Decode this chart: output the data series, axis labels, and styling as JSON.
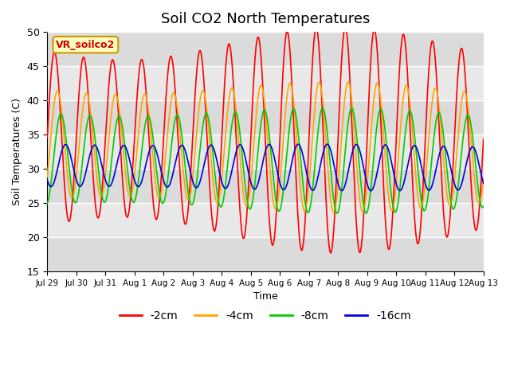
{
  "title": "Soil CO2 North Temperatures",
  "ylabel": "Soil Temperatures (C)",
  "xlabel": "Time",
  "ylim": [
    15,
    50
  ],
  "plot_bg": "#e8e8e8",
  "annotation_label": "VR_soilco2",
  "series": [
    {
      "name": "-2cm",
      "color": "#ff0000",
      "amplitude": 14.0,
      "mean": 34.5,
      "phase": 0.0,
      "amp_mod": 0.18
    },
    {
      "name": "-4cm",
      "color": "#ffa500",
      "amplitude": 8.5,
      "mean": 33.5,
      "phase": 0.1,
      "amp_mod": 0.12
    },
    {
      "name": "-8cm",
      "color": "#00cc00",
      "amplitude": 7.0,
      "mean": 31.5,
      "phase": 0.22,
      "amp_mod": 0.1
    },
    {
      "name": "-16cm",
      "color": "#0000dd",
      "amplitude": 3.2,
      "mean": 30.5,
      "phase": 0.38,
      "amp_mod": 0.06
    }
  ],
  "xtick_labels": [
    "Jul 29",
    "Jul 30",
    "Jul 31",
    "Aug 1",
    "Aug 2",
    "Aug 3",
    "Aug 4",
    "Aug 5",
    "Aug 6",
    "Aug 7",
    "Aug 8",
    "Aug 9",
    "Aug 10",
    "Aug 11",
    "Aug 12",
    "Aug 13"
  ],
  "legend_items": [
    {
      "label": "-2cm",
      "color": "#ff0000"
    },
    {
      "label": "-4cm",
      "color": "#ffa500"
    },
    {
      "label": "-8cm",
      "color": "#00cc00"
    },
    {
      "label": "-16cm",
      "color": "#0000dd"
    }
  ]
}
